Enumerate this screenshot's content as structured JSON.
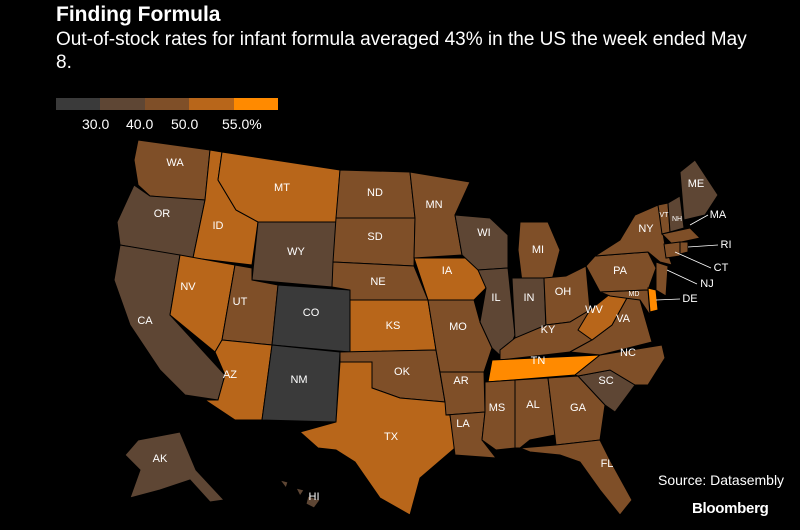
{
  "title": "Finding Formula",
  "subtitle": "Out-of-stock rates for infant formula averaged 43% in the US the week ended May 8.",
  "legend": {
    "colors": [
      "#3a3a3a",
      "#5e4634",
      "#7f4f28",
      "#b8661a",
      "#ff8a00"
    ],
    "labels": [
      "30.0",
      "40.0",
      "50.0",
      "55.0%"
    ]
  },
  "source": "Source: Datasembly",
  "logo": "Bloomberg",
  "states": {
    "WA": {
      "label": "WA",
      "bin": 2
    },
    "OR": {
      "label": "OR",
      "bin": 1
    },
    "CA": {
      "label": "CA",
      "bin": 1
    },
    "ID": {
      "label": "ID",
      "bin": 3
    },
    "NV": {
      "label": "NV",
      "bin": 3
    },
    "MT": {
      "label": "MT",
      "bin": 3
    },
    "WY": {
      "label": "WY",
      "bin": 1
    },
    "UT": {
      "label": "UT",
      "bin": 2
    },
    "AZ": {
      "label": "AZ",
      "bin": 3
    },
    "CO": {
      "label": "CO",
      "bin": 0
    },
    "NM": {
      "label": "NM",
      "bin": 0
    },
    "ND": {
      "label": "ND",
      "bin": 2
    },
    "SD": {
      "label": "SD",
      "bin": 2
    },
    "NE": {
      "label": "NE",
      "bin": 2
    },
    "KS": {
      "label": "KS",
      "bin": 3
    },
    "OK": {
      "label": "OK",
      "bin": 2
    },
    "TX": {
      "label": "TX",
      "bin": 3
    },
    "MN": {
      "label": "MN",
      "bin": 2
    },
    "IA": {
      "label": "IA",
      "bin": 3
    },
    "MO": {
      "label": "MO",
      "bin": 2
    },
    "AR": {
      "label": "AR",
      "bin": 2
    },
    "LA": {
      "label": "LA",
      "bin": 2
    },
    "WI": {
      "label": "WI",
      "bin": 1
    },
    "IL": {
      "label": "IL",
      "bin": 1
    },
    "MI": {
      "label": "MI",
      "bin": 2
    },
    "IN": {
      "label": "IN",
      "bin": 1
    },
    "OH": {
      "label": "OH",
      "bin": 2
    },
    "KY": {
      "label": "KY",
      "bin": 2
    },
    "TN": {
      "label": "TN",
      "bin": 4
    },
    "MS": {
      "label": "MS",
      "bin": 2
    },
    "AL": {
      "label": "AL",
      "bin": 2
    },
    "GA": {
      "label": "GA",
      "bin": 2
    },
    "FL": {
      "label": "FL",
      "bin": 2
    },
    "SC": {
      "label": "SC",
      "bin": 1
    },
    "NC": {
      "label": "NC",
      "bin": 2
    },
    "VA": {
      "label": "VA",
      "bin": 2
    },
    "WV": {
      "label": "WV",
      "bin": 3
    },
    "PA": {
      "label": "PA",
      "bin": 2
    },
    "NY": {
      "label": "NY",
      "bin": 2
    },
    "NJ": {
      "label": "NJ",
      "bin": 2
    },
    "DE": {
      "label": "DE",
      "bin": 4
    },
    "MD": {
      "label": "MD",
      "bin": 2
    },
    "CT": {
      "label": "CT",
      "bin": 2
    },
    "RI": {
      "label": "RI",
      "bin": 2
    },
    "MA": {
      "label": "MA",
      "bin": 2
    },
    "VT": {
      "label": "VT",
      "bin": 2
    },
    "NH": {
      "label": "NH",
      "bin": 1
    },
    "ME": {
      "label": "ME",
      "bin": 1
    },
    "AK": {
      "label": "AK",
      "bin": 1
    },
    "HI": {
      "label": "HI",
      "bin": 1
    }
  }
}
